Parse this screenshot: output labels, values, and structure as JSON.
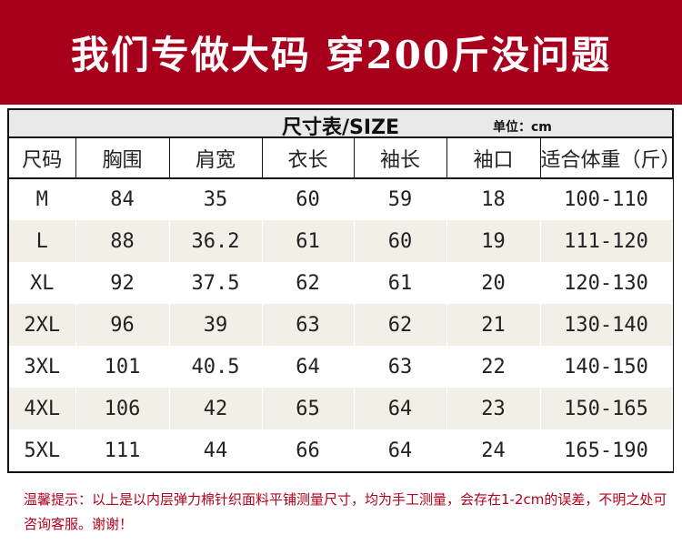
{
  "banner": {
    "title": "我们专做大码 穿200斤没问题"
  },
  "table": {
    "title": "尺寸表/SIZE",
    "unit": "单位：cm",
    "headers": [
      "尺码",
      "胸围",
      "肩宽",
      "衣长",
      "袖长",
      "袖口",
      "适合体重（斤）"
    ],
    "rows": [
      [
        "M",
        "84",
        "35",
        "60",
        "59",
        "18",
        "100-110"
      ],
      [
        "L",
        "88",
        "36.2",
        "61",
        "60",
        "19",
        "111-120"
      ],
      [
        "XL",
        "92",
        "37.5",
        "62",
        "61",
        "20",
        "120-130"
      ],
      [
        "2XL",
        "96",
        "39",
        "63",
        "62",
        "21",
        "130-140"
      ],
      [
        "3XL",
        "101",
        "40.5",
        "64",
        "63",
        "22",
        "140-150"
      ],
      [
        "4XL",
        "106",
        "42",
        "65",
        "64",
        "23",
        "150-165"
      ],
      [
        "5XL",
        "111",
        "44",
        "66",
        "64",
        "24",
        "165-190"
      ]
    ]
  },
  "note": "温馨提示：以上是以内层弹力棉针织面料平铺测量尺寸，均为手工测量，会存在1-2cm的误差，不明之处可咨询客服。谢谢！",
  "colors": {
    "banner": "#a8001c",
    "note": "#b3001b",
    "row_alt": "#f1efe6"
  }
}
